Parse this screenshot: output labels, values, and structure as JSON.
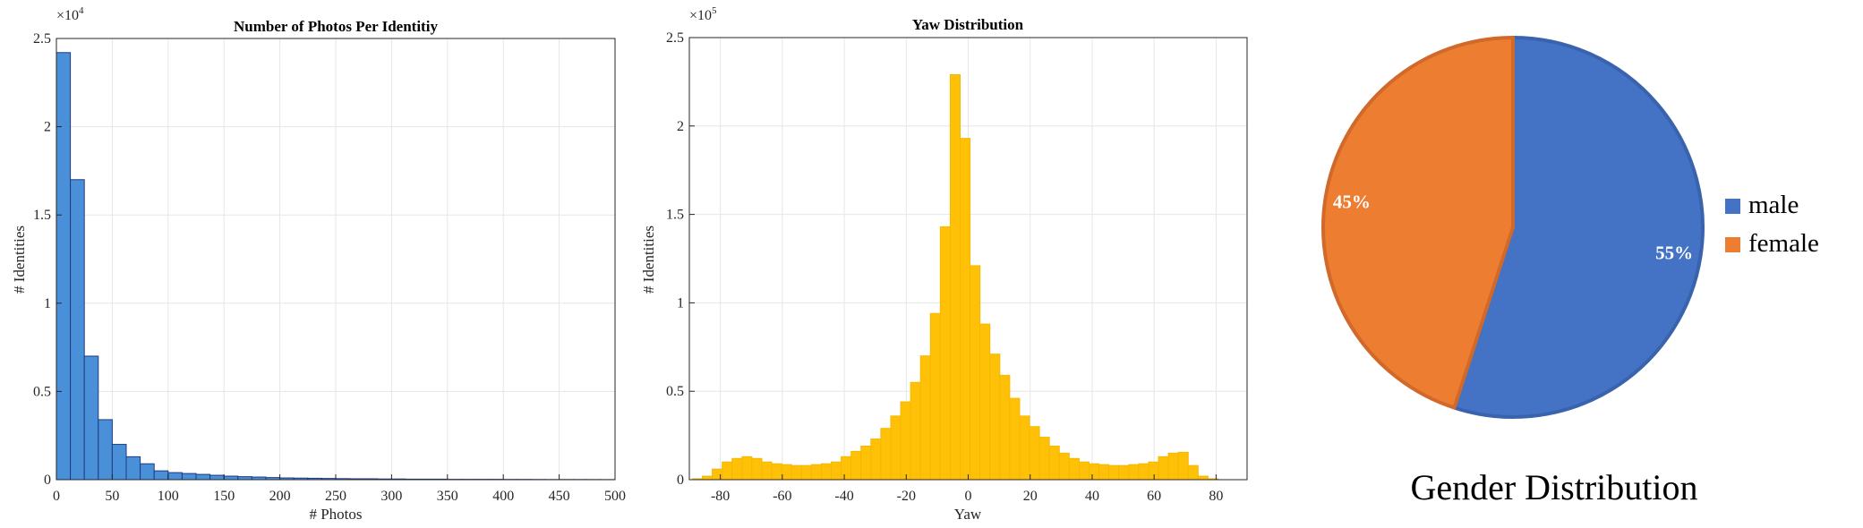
{
  "chart_data": [
    {
      "type": "bar",
      "title": "Number of Photos Per Identitiy",
      "xlabel": "# Photos",
      "ylabel": "# Identities",
      "exponent_label": "×10",
      "exponent": "4",
      "xlim": [
        0,
        500
      ],
      "ylim": [
        0,
        2.5
      ],
      "xticks": [
        0,
        50,
        100,
        150,
        200,
        250,
        300,
        350,
        400,
        450,
        500
      ],
      "yticks": [
        0,
        0.5,
        1,
        1.5,
        2,
        2.5
      ],
      "grid": true,
      "bin_width": 12.5,
      "bin_start": 0,
      "color": "#4a90d9",
      "edge_color": "#1f3a80",
      "values": [
        2.42,
        1.7,
        0.7,
        0.34,
        0.2,
        0.13,
        0.09,
        0.05,
        0.04,
        0.035,
        0.03,
        0.025,
        0.02,
        0.017,
        0.015,
        0.012,
        0.01,
        0.009,
        0.008,
        0.007,
        0.006,
        0.005,
        0.005,
        0.004,
        0.004,
        0.003,
        0.003,
        0.003,
        0.002,
        0.002,
        0.002,
        0.002,
        0.0015,
        0.0015,
        0.0012,
        0.001,
        0.001,
        0.001,
        0.0008,
        0.0006
      ]
    },
    {
      "type": "bar",
      "title": "Yaw Distribution",
      "xlabel": "Yaw",
      "ylabel": "# Identities",
      "exponent_label": "×10",
      "exponent": "5",
      "xlim": [
        -90,
        90
      ],
      "ylim": [
        0,
        2.5
      ],
      "xticks": [
        -80,
        -60,
        -40,
        -20,
        0,
        20,
        40,
        60,
        80
      ],
      "yticks": [
        0,
        0.5,
        1,
        1.5,
        2,
        2.5
      ],
      "grid": true,
      "bin_width": 3.2,
      "bin_start": -89,
      "color": "#ffc107",
      "edge_color": "#f5b800",
      "values": [
        0.005,
        0.02,
        0.06,
        0.1,
        0.12,
        0.13,
        0.12,
        0.1,
        0.09,
        0.085,
        0.08,
        0.08,
        0.085,
        0.09,
        0.1,
        0.13,
        0.16,
        0.19,
        0.23,
        0.29,
        0.36,
        0.44,
        0.55,
        0.7,
        0.94,
        1.43,
        2.29,
        1.93,
        1.21,
        0.88,
        0.71,
        0.59,
        0.46,
        0.36,
        0.3,
        0.24,
        0.19,
        0.15,
        0.12,
        0.1,
        0.09,
        0.085,
        0.08,
        0.08,
        0.085,
        0.09,
        0.1,
        0.13,
        0.15,
        0.155,
        0.08,
        0.02,
        0.005
      ]
    },
    {
      "type": "pie",
      "title": "Gender Distribution",
      "slices": [
        {
          "label": "male",
          "value": 55,
          "pct_label": "55%",
          "color": "#4472c4",
          "edge": "#3a63ad"
        },
        {
          "label": "female",
          "value": 45,
          "pct_label": "45%",
          "color": "#ed7d31",
          "edge": "#d0692a"
        }
      ],
      "legend": [
        "male",
        "female"
      ],
      "legend_position": "right"
    }
  ]
}
